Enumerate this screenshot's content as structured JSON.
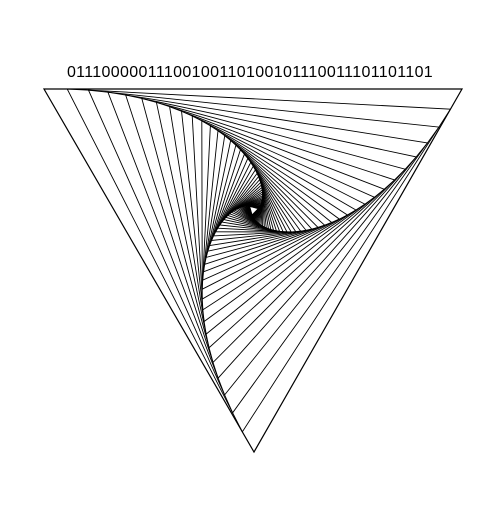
{
  "caption": {
    "binary_text": "01110000011100100110100101110011101101101"
  },
  "artwork": {
    "description_icon": "nested-rotating-triangles-icon",
    "stroke_color": "#000000",
    "background_color": "#ffffff"
  }
}
